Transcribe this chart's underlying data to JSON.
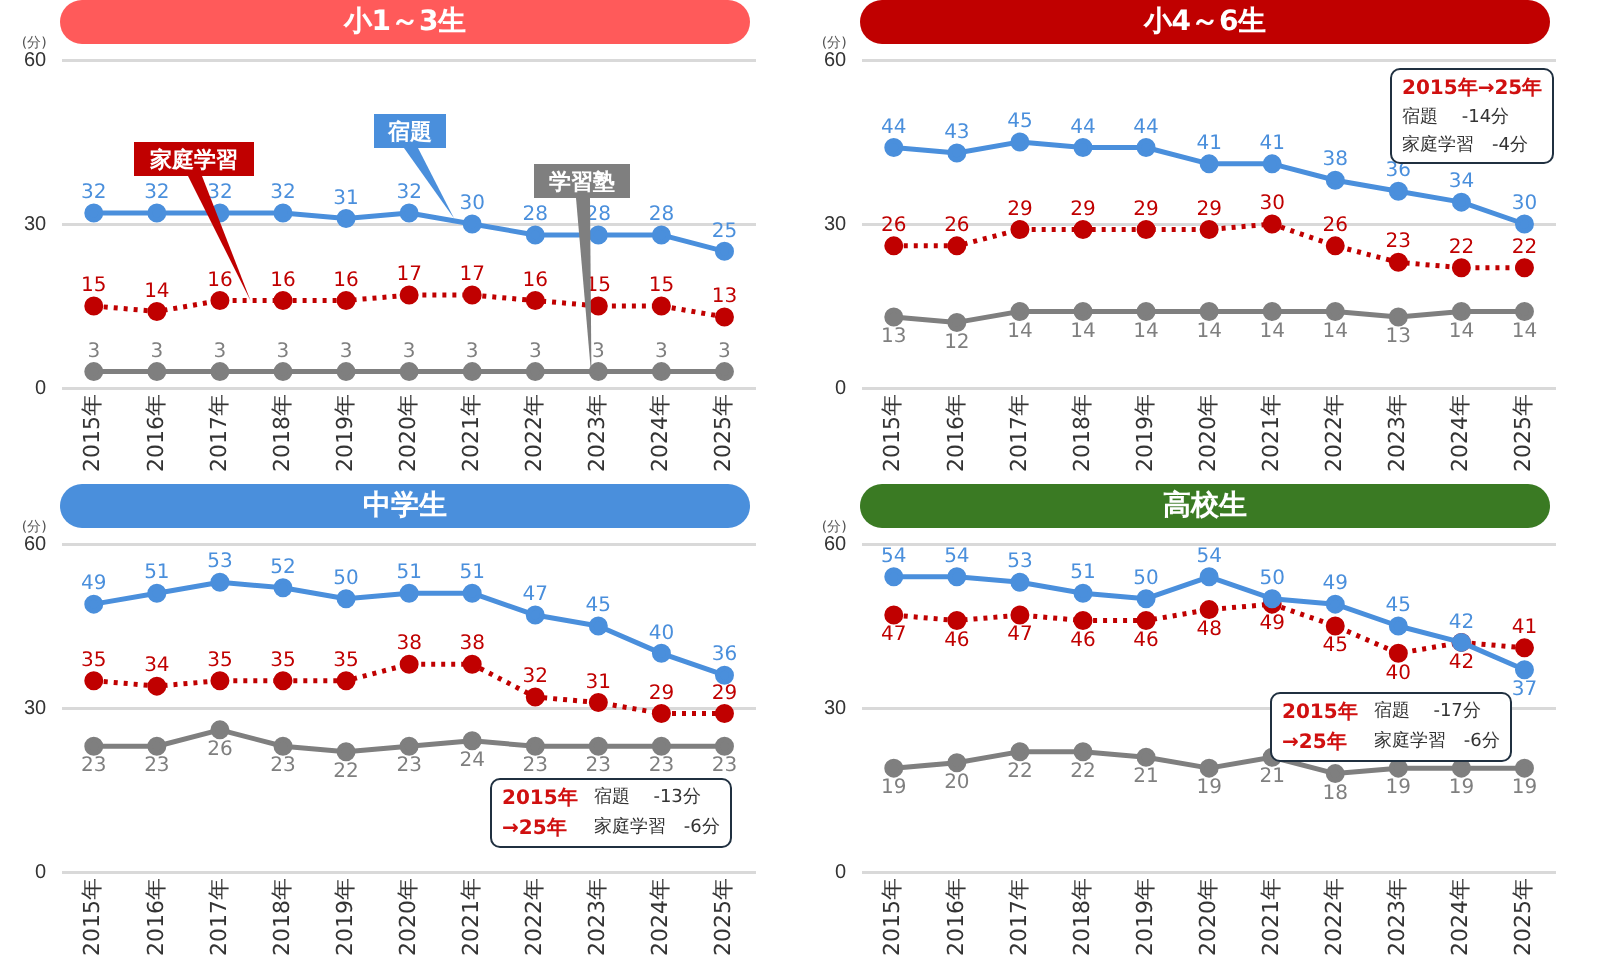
{
  "chart_data": [
    {
      "type": "line",
      "title": "小1～3生",
      "ylabel": "(分)",
      "categories": [
        "2015年",
        "2016年",
        "2017年",
        "2018年",
        "2019年",
        "2020年",
        "2021年",
        "2022年",
        "2023年",
        "2024年",
        "2025年"
      ],
      "ylim": [
        0,
        60
      ],
      "yticks": [
        0,
        30,
        60
      ],
      "grid": "y",
      "legend": false,
      "marker": "circle",
      "data_labels": true,
      "series": [
        {
          "name": "宿題",
          "color": "#4a8fdc",
          "line_style": "solid",
          "values": [
            32,
            32,
            32,
            32,
            31,
            32,
            30,
            28,
            28,
            28,
            25
          ]
        },
        {
          "name": "家庭学習",
          "color": "#c00000",
          "line_style": "dotted",
          "values": [
            15,
            14,
            16,
            16,
            16,
            17,
            17,
            16,
            15,
            15,
            13
          ]
        },
        {
          "name": "学習塾",
          "color": "#7f7f7f",
          "line_style": "solid",
          "values": [
            3,
            3,
            3,
            3,
            3,
            3,
            3,
            3,
            3,
            3,
            3
          ]
        }
      ]
    },
    {
      "type": "line",
      "title": "小4～6生",
      "ylabel": "(分)",
      "categories": [
        "2015年",
        "2016年",
        "2017年",
        "2018年",
        "2019年",
        "2020年",
        "2021年",
        "2022年",
        "2023年",
        "2024年",
        "2025年"
      ],
      "ylim": [
        0,
        60
      ],
      "yticks": [
        0,
        30,
        60
      ],
      "grid": "y",
      "legend": false,
      "marker": "circle",
      "data_labels": true,
      "annotations": [
        "2015年→25年",
        "宿題　 -14分",
        "家庭学習　-4分"
      ],
      "series": [
        {
          "color": "#4a8fdc",
          "line_style": "solid",
          "values": [
            44,
            43,
            45,
            44,
            44,
            41,
            41,
            38,
            36,
            34,
            30
          ]
        },
        {
          "color": "#c00000",
          "line_style": "dotted",
          "values": [
            26,
            26,
            29,
            29,
            29,
            29,
            30,
            26,
            23,
            22,
            22
          ]
        },
        {
          "color": "#7f7f7f",
          "line_style": "solid",
          "values": [
            13,
            12,
            14,
            14,
            14,
            14,
            14,
            14,
            13,
            14,
            14
          ]
        }
      ]
    },
    {
      "type": "line",
      "title": "中学生",
      "ylabel": "(分)",
      "categories": [
        "2015年",
        "2016年",
        "2017年",
        "2018年",
        "2019年",
        "2020年",
        "2021年",
        "2022年",
        "2023年",
        "2024年",
        "2025年"
      ],
      "ylim": [
        0,
        60
      ],
      "yticks": [
        0,
        30,
        60
      ],
      "grid": "y",
      "legend": false,
      "marker": "circle",
      "data_labels": true,
      "annotations": [
        "2015年",
        "宿題　 -13分",
        "→25年",
        "家庭学習　-6分"
      ],
      "series": [
        {
          "color": "#4a8fdc",
          "line_style": "solid",
          "values": [
            49,
            51,
            53,
            52,
            50,
            51,
            51,
            47,
            45,
            40,
            36
          ]
        },
        {
          "color": "#c00000",
          "line_style": "dotted",
          "values": [
            35,
            34,
            35,
            35,
            35,
            38,
            38,
            32,
            31,
            29,
            29
          ]
        },
        {
          "color": "#7f7f7f",
          "line_style": "solid",
          "values": [
            23,
            23,
            26,
            23,
            22,
            23,
            24,
            23,
            23,
            23,
            23
          ]
        }
      ]
    },
    {
      "type": "line",
      "title": "高校生",
      "ylabel": "(分)",
      "categories": [
        "2015年",
        "2016年",
        "2017年",
        "2018年",
        "2019年",
        "2020年",
        "2021年",
        "2022年",
        "2023年",
        "2024年",
        "2025年"
      ],
      "ylim": [
        0,
        60
      ],
      "yticks": [
        0,
        30,
        60
      ],
      "grid": "y",
      "legend": false,
      "marker": "circle",
      "data_labels": true,
      "annotations": [
        "2015年",
        "宿題　 -17分",
        "→25年",
        "家庭学習　-6分"
      ],
      "series": [
        {
          "color": "#4a8fdc",
          "line_style": "solid",
          "values": [
            54,
            54,
            53,
            51,
            50,
            54,
            50,
            49,
            45,
            42,
            37
          ]
        },
        {
          "color": "#c00000",
          "line_style": "dotted",
          "values": [
            47,
            46,
            47,
            46,
            46,
            48,
            49,
            45,
            40,
            42,
            41
          ]
        },
        {
          "color": "#7f7f7f",
          "line_style": "solid",
          "values": [
            19,
            20,
            22,
            22,
            21,
            19,
            21,
            18,
            19,
            19,
            19
          ]
        }
      ]
    }
  ]
}
